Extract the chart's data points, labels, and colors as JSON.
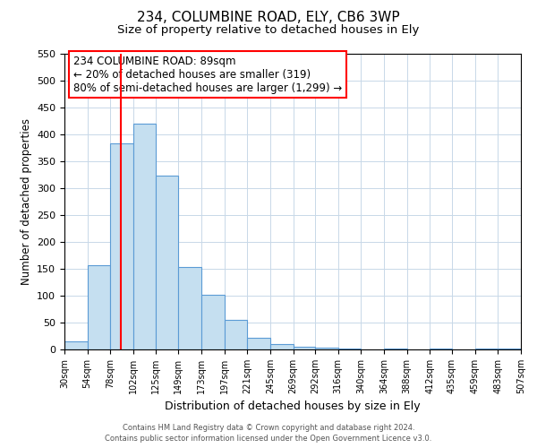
{
  "title": "234, COLUMBINE ROAD, ELY, CB6 3WP",
  "subtitle": "Size of property relative to detached houses in Ely",
  "xlabel": "Distribution of detached houses by size in Ely",
  "ylabel": "Number of detached properties",
  "bar_color": "#c5dff0",
  "bar_edge_color": "#5b9bd5",
  "bin_labels": [
    "30sqm",
    "54sqm",
    "78sqm",
    "102sqm",
    "125sqm",
    "149sqm",
    "173sqm",
    "197sqm",
    "221sqm",
    "245sqm",
    "269sqm",
    "292sqm",
    "316sqm",
    "340sqm",
    "364sqm",
    "388sqm",
    "412sqm",
    "435sqm",
    "459sqm",
    "483sqm",
    "507sqm"
  ],
  "bin_edges": [
    30,
    54,
    78,
    102,
    125,
    149,
    173,
    197,
    221,
    245,
    269,
    292,
    316,
    340,
    364,
    388,
    412,
    435,
    459,
    483,
    507
  ],
  "bar_heights": [
    15,
    157,
    383,
    420,
    323,
    153,
    101,
    55,
    21,
    10,
    5,
    4,
    1,
    0,
    2,
    0,
    1,
    0,
    1,
    2
  ],
  "ylim": [
    0,
    550
  ],
  "yticks": [
    0,
    50,
    100,
    150,
    200,
    250,
    300,
    350,
    400,
    450,
    500,
    550
  ],
  "red_line_x": 89,
  "annotation_title": "234 COLUMBINE ROAD: 89sqm",
  "annotation_line1": "← 20% of detached houses are smaller (319)",
  "annotation_line2": "80% of semi-detached houses are larger (1,299) →",
  "footnote1": "Contains HM Land Registry data © Crown copyright and database right 2024.",
  "footnote2": "Contains public sector information licensed under the Open Government Licence v3.0.",
  "background_color": "#ffffff",
  "grid_color": "#c8d8e8"
}
